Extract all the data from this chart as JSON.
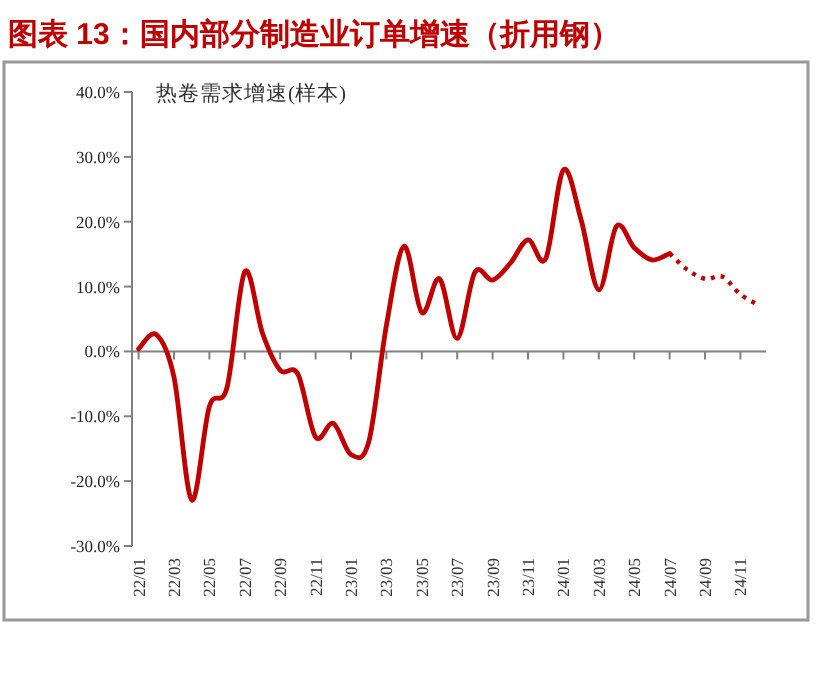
{
  "chart_data": {
    "type": "line",
    "title": "图表 13：国内部分制造业订单增速（折用钢）",
    "annotations": [
      "热卷需求增速(样本)"
    ],
    "categories": [
      "22/01",
      null,
      "22/03",
      null,
      "22/05",
      null,
      "22/07",
      null,
      "22/09",
      null,
      "22/11",
      null,
      "23/01",
      null,
      "23/03",
      null,
      "23/05",
      null,
      "23/07",
      null,
      "23/09",
      null,
      "23/11",
      null,
      "24/01",
      null,
      "24/03",
      null,
      "24/05",
      null,
      "24/07",
      null,
      "24/09",
      null,
      "24/11",
      null
    ],
    "series": [
      {
        "color": "#c00000",
        "line_style": "solid",
        "values": [
          0.4,
          2.6,
          -4,
          -22.9,
          -8.5,
          -5.5,
          12.3,
          2.8,
          -2.9,
          -3.5,
          -13.2,
          -11.1,
          -15.9,
          -14,
          4,
          16.2,
          6,
          11.2,
          2,
          12.2,
          11,
          13.6,
          17.2,
          14.3,
          28,
          20.3,
          9.5,
          19.3,
          16,
          14.1,
          15.1,
          null,
          null,
          null,
          null,
          null
        ]
      },
      {
        "color": "#c00000",
        "line_style": "dotted",
        "values": [
          null,
          null,
          null,
          null,
          null,
          null,
          null,
          null,
          null,
          null,
          null,
          null,
          null,
          null,
          null,
          null,
          null,
          null,
          null,
          null,
          null,
          null,
          null,
          null,
          null,
          null,
          null,
          null,
          null,
          null,
          15.1,
          12.6,
          11.2,
          11.5,
          8.8,
          7.2
        ]
      }
    ],
    "ylim": [
      -30,
      40
    ],
    "yticks": [
      {
        "value": -30,
        "label": "-30.0%"
      },
      {
        "value": -20,
        "label": "-20.0%"
      },
      {
        "value": -10,
        "label": "-10.0%"
      },
      {
        "value": 0,
        "label": "0.0%"
      },
      {
        "value": 10,
        "label": "10.0%"
      },
      {
        "value": 20,
        "label": "20.0%"
      },
      {
        "value": 30,
        "label": "30.0%"
      },
      {
        "value": 40,
        "label": "40.0%"
      }
    ],
    "marker": "none"
  }
}
